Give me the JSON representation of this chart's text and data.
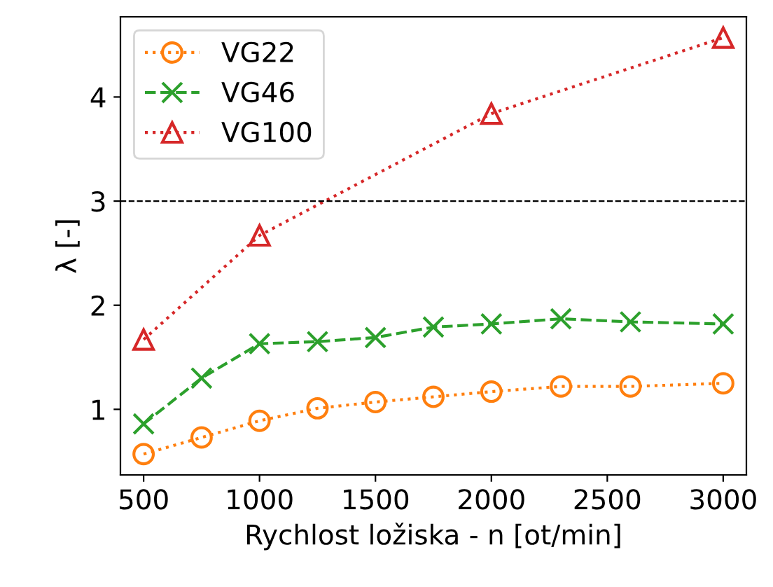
{
  "chart_data": {
    "type": "line",
    "xlabel": "Rychlost ložiska - n [ot/min]",
    "ylabel": "λ [-]",
    "xlim": [
      400,
      3100
    ],
    "xticks": [
      500,
      1000,
      1500,
      2000,
      2500,
      3000
    ],
    "ylim": [
      0.37,
      4.77
    ],
    "yticks": [
      1,
      2,
      3,
      4
    ],
    "grid": false,
    "legend": "top left",
    "ref_lines": [
      {
        "axis": "y",
        "value": 3,
        "color": "#000000",
        "line_style": "dashed"
      }
    ],
    "series": [
      {
        "name": "VG22",
        "color": "#ff7f0e",
        "marker": "circle",
        "line_style": "dotted",
        "x": [
          500,
          750,
          1000,
          1250,
          1500,
          1750,
          2000,
          2300,
          2600,
          3000
        ],
        "values": [
          0.57,
          0.73,
          0.89,
          1.01,
          1.07,
          1.12,
          1.17,
          1.22,
          1.22,
          1.25
        ]
      },
      {
        "name": "VG46",
        "color": "#2ca02c",
        "marker": "cross",
        "line_style": "dashed",
        "x": [
          500,
          750,
          1000,
          1250,
          1500,
          1750,
          2000,
          2300,
          2600,
          3000
        ],
        "values": [
          0.86,
          1.3,
          1.63,
          1.65,
          1.69,
          1.79,
          1.82,
          1.87,
          1.84,
          1.82
        ]
      },
      {
        "name": "VG100",
        "color": "#d62728",
        "marker": "triangle",
        "line_style": "dotted",
        "x": [
          500,
          1000,
          2000,
          3000
        ],
        "values": [
          1.67,
          2.67,
          3.84,
          4.57
        ]
      }
    ]
  }
}
